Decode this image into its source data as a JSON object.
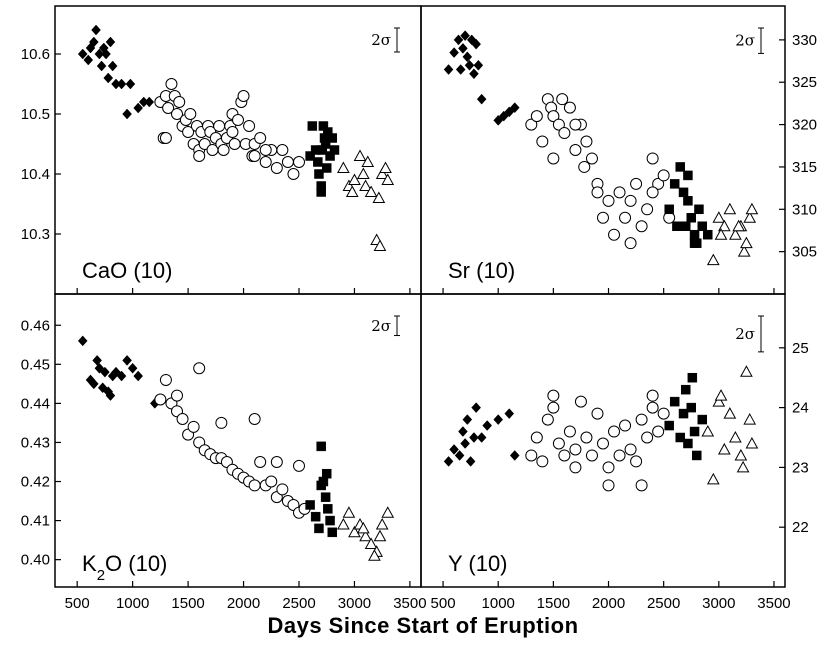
{
  "xlabel": "Days Since Start of Eruption",
  "sigma_label": "2σ",
  "colors": {
    "ink": "#000000",
    "hollow": "#ffffff",
    "background": "#ffffff"
  },
  "chart_data": [
    {
      "type": "scatter",
      "panel": "top-left",
      "label_parts": [
        {
          "t": "CaO (10)"
        }
      ],
      "label_text": "CaO (10)",
      "xlim": [
        300,
        3600
      ],
      "ylim": [
        10.2,
        10.68
      ],
      "xticks": [
        500,
        1000,
        1500,
        2000,
        2500,
        3000,
        3500
      ],
      "yticks": [
        10.3,
        10.4,
        10.5,
        10.6
      ],
      "ytick_labels": [
        "10.3",
        "10.4",
        "10.5",
        "10.6"
      ],
      "y_axis_side": "left",
      "grid": false,
      "error_bar_2sigma": 0.04,
      "series": [
        {
          "marker": "diamond-filled",
          "x": [
            550,
            600,
            620,
            650,
            670,
            700,
            720,
            740,
            760,
            780,
            800,
            820,
            850,
            900,
            950,
            980,
            1050,
            1100,
            1150
          ],
          "y": [
            10.6,
            10.59,
            10.61,
            10.62,
            10.64,
            10.6,
            10.58,
            10.61,
            10.6,
            10.56,
            10.62,
            10.58,
            10.55,
            10.55,
            10.5,
            10.55,
            10.51,
            10.52,
            10.52
          ]
        },
        {
          "marker": "circle-open",
          "x": [
            1250,
            1280,
            1300,
            1320,
            1350,
            1380,
            1400,
            1420,
            1450,
            1480,
            1500,
            1520,
            1550,
            1580,
            1600,
            1620,
            1650,
            1680,
            1700,
            1720,
            1750,
            1780,
            1800,
            1820,
            1850,
            1880,
            1900,
            1920,
            1950,
            1980,
            2000,
            2020,
            2050,
            2080,
            2100,
            2150,
            2200,
            2250,
            2300,
            2350,
            2400,
            2450,
            2500,
            1300,
            1600,
            1900,
            2100,
            2200
          ],
          "y": [
            10.52,
            10.46,
            10.53,
            10.51,
            10.55,
            10.53,
            10.5,
            10.52,
            10.48,
            10.49,
            10.47,
            10.5,
            10.45,
            10.48,
            10.44,
            10.47,
            10.45,
            10.48,
            10.47,
            10.44,
            10.46,
            10.48,
            10.45,
            10.44,
            10.46,
            10.48,
            10.5,
            10.45,
            10.49,
            10.52,
            10.53,
            10.45,
            10.48,
            10.43,
            10.45,
            10.46,
            10.42,
            10.44,
            10.41,
            10.44,
            10.42,
            10.4,
            10.42,
            10.46,
            10.43,
            10.47,
            10.43,
            10.44
          ]
        },
        {
          "marker": "square-filled",
          "x": [
            2600,
            2620,
            2650,
            2670,
            2680,
            2700,
            2710,
            2720,
            2740,
            2750,
            2760,
            2780,
            2800,
            2820,
            2700,
            2730
          ],
          "y": [
            10.43,
            10.48,
            10.44,
            10.42,
            10.4,
            10.37,
            10.44,
            10.48,
            10.45,
            10.41,
            10.47,
            10.43,
            10.46,
            10.44,
            10.38,
            10.46
          ]
        },
        {
          "marker": "triangle-open",
          "x": [
            2900,
            2950,
            3000,
            3050,
            3080,
            3100,
            3150,
            3200,
            3230,
            3250,
            3280,
            3300,
            2980,
            3120,
            3220
          ],
          "y": [
            10.41,
            10.38,
            10.39,
            10.43,
            10.4,
            10.38,
            10.37,
            10.29,
            10.28,
            10.4,
            10.41,
            10.39,
            10.37,
            10.42,
            10.36
          ]
        }
      ]
    },
    {
      "type": "scatter",
      "panel": "top-right",
      "label_parts": [
        {
          "t": "Sr (10)"
        }
      ],
      "label_text": "Sr (10)",
      "xlim": [
        300,
        3600
      ],
      "ylim": [
        300,
        334
      ],
      "xticks": [
        500,
        1000,
        1500,
        2000,
        2500,
        3000,
        3500
      ],
      "yticks": [
        305,
        310,
        315,
        320,
        325,
        330
      ],
      "ytick_labels": [
        "305",
        "310",
        "315",
        "320",
        "325",
        "330"
      ],
      "y_axis_side": "right",
      "grid": false,
      "error_bar_2sigma": 3,
      "series": [
        {
          "marker": "diamond-filled",
          "x": [
            550,
            600,
            640,
            660,
            680,
            700,
            720,
            740,
            760,
            780,
            800,
            820,
            850,
            1000,
            1050,
            1100,
            1150
          ],
          "y": [
            326.5,
            328.5,
            330.0,
            326.5,
            329.0,
            330.5,
            328.0,
            327.0,
            330.0,
            326.0,
            329.5,
            327.0,
            323.0,
            320.5,
            321.0,
            321.5,
            322.0
          ]
        },
        {
          "marker": "circle-open",
          "x": [
            1300,
            1350,
            1400,
            1450,
            1480,
            1500,
            1550,
            1580,
            1600,
            1650,
            1700,
            1750,
            1780,
            1800,
            1850,
            1900,
            1950,
            2000,
            2050,
            2100,
            2150,
            2200,
            2250,
            2300,
            2350,
            2400,
            2450,
            2500,
            2550,
            1500,
            1700,
            1900,
            2200,
            2400
          ],
          "y": [
            320,
            321,
            318,
            323,
            322,
            321,
            320,
            323,
            319,
            322,
            317,
            320,
            315,
            318,
            316,
            313,
            309,
            311,
            307,
            312,
            309,
            311,
            313,
            308,
            310,
            316,
            313,
            314,
            309,
            316,
            320,
            312,
            306,
            312
          ]
        },
        {
          "marker": "square-filled",
          "x": [
            2550,
            2600,
            2620,
            2650,
            2680,
            2700,
            2720,
            2750,
            2780,
            2800,
            2820,
            2850,
            2900,
            2720,
            2780
          ],
          "y": [
            310,
            313,
            308,
            315,
            312,
            308,
            311,
            309,
            307,
            306,
            310,
            308,
            307,
            314,
            306
          ]
        },
        {
          "marker": "triangle-open",
          "x": [
            2950,
            3000,
            3050,
            3100,
            3150,
            3200,
            3230,
            3250,
            3280,
            3300,
            3020,
            3180
          ],
          "y": [
            304,
            309,
            308,
            310,
            307,
            308,
            305,
            306,
            309,
            310,
            307,
            308
          ]
        }
      ]
    },
    {
      "type": "scatter",
      "panel": "bottom-left",
      "label_parts": [
        {
          "t": "K"
        },
        {
          "t": "2",
          "sub": true
        },
        {
          "t": "O (10)"
        }
      ],
      "label_text": "K2O (10)",
      "xlim": [
        300,
        3600
      ],
      "ylim": [
        0.393,
        0.468
      ],
      "xticks": [
        500,
        1000,
        1500,
        2000,
        2500,
        3000,
        3500
      ],
      "yticks": [
        0.4,
        0.41,
        0.42,
        0.43,
        0.44,
        0.45,
        0.46
      ],
      "ytick_labels": [
        "0.40",
        "0.41",
        "0.42",
        "0.43",
        "0.44",
        "0.45",
        "0.46"
      ],
      "y_axis_side": "left",
      "grid": false,
      "error_bar_2sigma": 0.005,
      "series": [
        {
          "marker": "diamond-filled",
          "x": [
            550,
            620,
            650,
            680,
            700,
            730,
            750,
            780,
            800,
            820,
            850,
            900,
            950,
            1000,
            1050,
            1200
          ],
          "y": [
            0.456,
            0.446,
            0.445,
            0.451,
            0.449,
            0.444,
            0.448,
            0.443,
            0.442,
            0.447,
            0.448,
            0.447,
            0.451,
            0.449,
            0.447,
            0.44
          ]
        },
        {
          "marker": "circle-open",
          "x": [
            1250,
            1300,
            1350,
            1400,
            1450,
            1500,
            1550,
            1600,
            1650,
            1700,
            1750,
            1800,
            1850,
            1900,
            1950,
            2000,
            2050,
            2100,
            2150,
            2200,
            2250,
            2300,
            2350,
            2400,
            2450,
            2500,
            2550,
            1400,
            1600,
            1800,
            2100,
            2300,
            2500
          ],
          "y": [
            0.441,
            0.446,
            0.44,
            0.438,
            0.436,
            0.432,
            0.434,
            0.43,
            0.428,
            0.427,
            0.426,
            0.426,
            0.425,
            0.423,
            0.422,
            0.421,
            0.42,
            0.419,
            0.425,
            0.419,
            0.42,
            0.416,
            0.418,
            0.415,
            0.414,
            0.412,
            0.413,
            0.442,
            0.449,
            0.435,
            0.436,
            0.425,
            0.424
          ]
        },
        {
          "marker": "square-filled",
          "x": [
            2600,
            2650,
            2680,
            2700,
            2720,
            2740,
            2760,
            2780,
            2800,
            2700,
            2750
          ],
          "y": [
            0.414,
            0.411,
            0.408,
            0.429,
            0.42,
            0.416,
            0.413,
            0.41,
            0.407,
            0.419,
            0.422
          ]
        },
        {
          "marker": "triangle-open",
          "x": [
            2900,
            2950,
            3000,
            3050,
            3100,
            3150,
            3200,
            3230,
            3250,
            3300,
            3080,
            3180
          ],
          "y": [
            0.409,
            0.412,
            0.407,
            0.409,
            0.406,
            0.404,
            0.402,
            0.406,
            0.409,
            0.412,
            0.408,
            0.401
          ]
        }
      ]
    },
    {
      "type": "scatter",
      "panel": "bottom-right",
      "label_parts": [
        {
          "t": "Y (10)"
        }
      ],
      "label_text": "Y (10)",
      "xlim": [
        300,
        3600
      ],
      "ylim": [
        21.0,
        25.9
      ],
      "xticks": [
        500,
        1000,
        1500,
        2000,
        2500,
        3000,
        3500
      ],
      "yticks": [
        22,
        23,
        24,
        25
      ],
      "ytick_labels": [
        "22",
        "23",
        "24",
        "25"
      ],
      "y_axis_side": "right",
      "grid": false,
      "error_bar_2sigma": 0.6,
      "series": [
        {
          "marker": "diamond-filled",
          "x": [
            550,
            600,
            650,
            680,
            700,
            720,
            750,
            780,
            800,
            850,
            900,
            1000,
            1100,
            1150
          ],
          "y": [
            23.1,
            23.3,
            23.2,
            23.6,
            23.4,
            23.8,
            23.1,
            23.5,
            24.0,
            23.5,
            23.7,
            23.8,
            23.9,
            23.2
          ]
        },
        {
          "marker": "circle-open",
          "x": [
            1300,
            1350,
            1400,
            1450,
            1500,
            1550,
            1600,
            1650,
            1700,
            1750,
            1800,
            1850,
            1900,
            1950,
            2000,
            2050,
            2100,
            2150,
            2200,
            2250,
            2300,
            2350,
            2400,
            2450,
            2500,
            1500,
            1700,
            2000,
            2300,
            2400
          ],
          "y": [
            23.2,
            23.5,
            23.1,
            23.8,
            24.0,
            23.4,
            23.2,
            23.6,
            23.3,
            24.1,
            23.5,
            23.2,
            23.9,
            23.4,
            23.0,
            23.6,
            23.2,
            23.7,
            23.3,
            23.1,
            23.8,
            23.5,
            24.2,
            23.6,
            23.9,
            24.2,
            23.0,
            22.7,
            22.7,
            24.0
          ]
        },
        {
          "marker": "square-filled",
          "x": [
            2550,
            2600,
            2650,
            2680,
            2700,
            2720,
            2750,
            2780,
            2800,
            2850,
            2760
          ],
          "y": [
            23.7,
            24.1,
            23.5,
            23.9,
            24.3,
            23.4,
            24.0,
            23.6,
            23.2,
            23.8,
            24.5
          ]
        },
        {
          "marker": "triangle-open",
          "x": [
            2900,
            2950,
            3000,
            3050,
            3100,
            3150,
            3200,
            3250,
            3280,
            3300,
            3020,
            3220
          ],
          "y": [
            23.6,
            22.8,
            24.1,
            23.3,
            23.9,
            23.5,
            23.2,
            24.6,
            23.8,
            23.4,
            24.2,
            23.0
          ]
        }
      ]
    }
  ]
}
